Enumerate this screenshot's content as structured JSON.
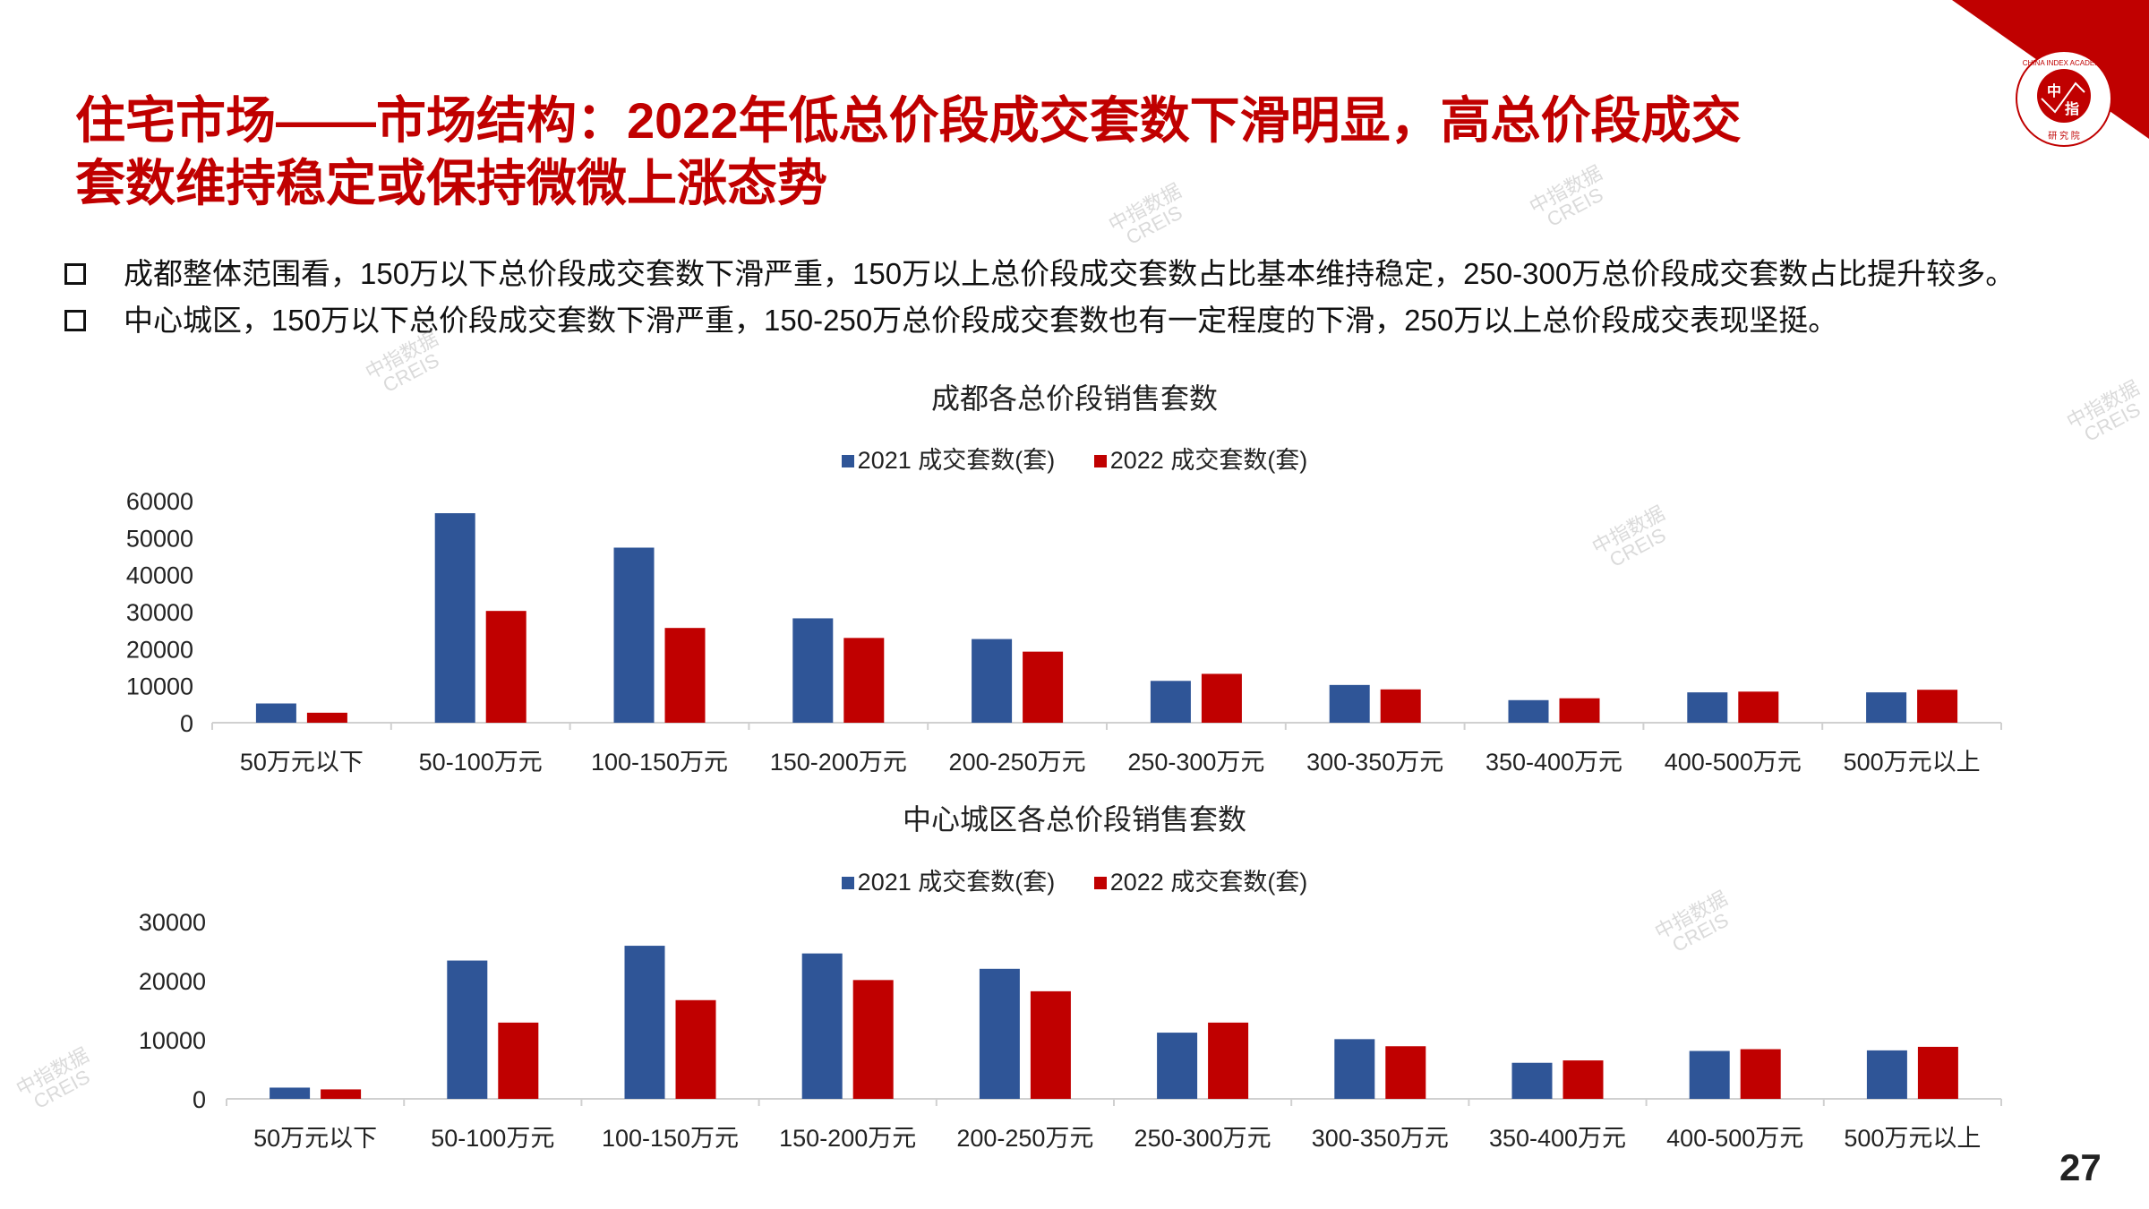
{
  "header": {
    "title_line1": "住宅市场——市场结构：2022年低总价段成交套数下滑明显，高总价段成交",
    "title_line2": "套数维持稳定或保持微微上涨态势",
    "logo_text": "CHINA INDEX ACADEMY 中指 研究院"
  },
  "bullets": [
    "成都整体范围看，150万以下总价段成交套数下滑严重，150万以上总价段成交套数占比基本维持稳定，250-300万总价段成交套数占比提升较多。",
    "中心城区，150万以下总价段成交套数下滑严重，150-250万总价段成交套数也有一定程度的下滑，250万以上总价段成交表现坚挺。"
  ],
  "watermark": {
    "line1": "中指数据",
    "line2": "CREIS"
  },
  "colors": {
    "series2021": "#2f5597",
    "series2022": "#c00000",
    "title": "#c00000"
  },
  "chart_data": [
    {
      "type": "bar",
      "title": "成都各总价段销售套数",
      "categories": [
        "50万元以下",
        "50-100万元",
        "100-150万元",
        "150-200万元",
        "200-250万元",
        "250-300万元",
        "300-350万元",
        "350-400万元",
        "400-500万元",
        "500万元以上"
      ],
      "series": [
        {
          "name": "2021 成交套数(套)",
          "values": [
            5200,
            56600,
            47300,
            28200,
            22600,
            11300,
            10200,
            6100,
            8200,
            8200
          ]
        },
        {
          "name": "2022 成交套数(套)",
          "values": [
            2700,
            30200,
            25600,
            22900,
            19200,
            13200,
            9000,
            6600,
            8400,
            8900
          ]
        }
      ],
      "ylim": [
        0,
        60000
      ],
      "yticks": [
        "0",
        "10000",
        "20000",
        "30000",
        "40000",
        "50000",
        "60000"
      ],
      "legend": "top"
    },
    {
      "type": "bar",
      "title": "中心城区各总价段销售套数",
      "categories": [
        "50万元以下",
        "50-100万元",
        "100-150万元",
        "150-200万元",
        "200-250万元",
        "250-300万元",
        "300-350万元",
        "350-400万元",
        "400-500万元",
        "500万元以上"
      ],
      "series": [
        {
          "name": "2021 成交套数(套)",
          "values": [
            1900,
            23400,
            25900,
            24600,
            22000,
            11200,
            10100,
            6100,
            8100,
            8200
          ]
        },
        {
          "name": "2022 成交套数(套)",
          "values": [
            1600,
            12900,
            16700,
            20100,
            18200,
            12900,
            8900,
            6500,
            8400,
            8800
          ]
        }
      ],
      "ylim": [
        0,
        30000
      ],
      "yticks": [
        "0",
        "10000",
        "20000",
        "30000"
      ],
      "legend": "top"
    }
  ],
  "page_number": "27"
}
